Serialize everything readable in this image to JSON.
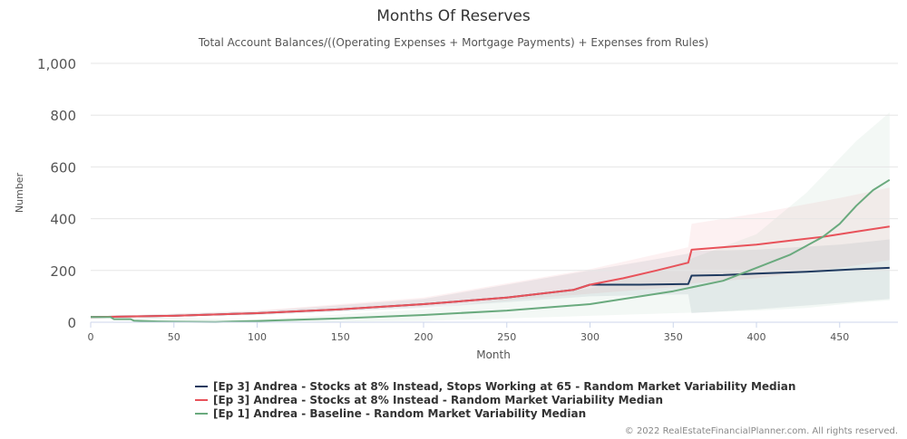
{
  "chart_data": {
    "type": "line",
    "title": "Months Of Reserves",
    "subtitle": "Total Account Balances/((Operating Expenses + Mortgage Payments) + Expenses from Rules)",
    "xlabel": "Month",
    "ylabel": "Number",
    "xlim": [
      0,
      485
    ],
    "ylim": [
      0,
      1000
    ],
    "x_ticks": [
      0,
      50,
      100,
      150,
      200,
      250,
      300,
      350,
      400,
      450
    ],
    "y_ticks": [
      0,
      200,
      400,
      600,
      800,
      1000
    ],
    "y_tick_labels": [
      "0",
      "200",
      "400",
      "600",
      "800",
      "1,000"
    ],
    "grid": true,
    "legend_position": "bottom",
    "series": [
      {
        "name": "[Ep 3] Andrea - Stocks at 8% Instead, Stops Working at 65 - Random Market Variability Median",
        "color": "#1f3a5f",
        "x": [
          0,
          50,
          100,
          150,
          200,
          250,
          290,
          300,
          330,
          359,
          361,
          380,
          400,
          430,
          460,
          480
        ],
        "y": [
          20,
          25,
          35,
          50,
          70,
          95,
          125,
          145,
          145,
          148,
          180,
          182,
          188,
          195,
          205,
          210
        ],
        "band": {
          "color": "#1f3a5f",
          "x": [
            0,
            100,
            200,
            300,
            359,
            361,
            400,
            450,
            480
          ],
          "lower": [
            18,
            28,
            55,
            100,
            108,
            35,
            50,
            75,
            90
          ],
          "upper": [
            22,
            42,
            90,
            200,
            265,
            275,
            280,
            300,
            320
          ]
        }
      },
      {
        "name": "[Ep 3] Andrea - Stocks at 8% Instead - Random Market Variability Median",
        "color": "#e8525a",
        "x": [
          0,
          50,
          100,
          150,
          200,
          250,
          290,
          300,
          320,
          340,
          359,
          361,
          380,
          400,
          420,
          440,
          460,
          480
        ],
        "y": [
          20,
          25,
          35,
          50,
          70,
          95,
          125,
          145,
          170,
          200,
          230,
          280,
          290,
          300,
          315,
          330,
          350,
          370
        ],
        "band": {
          "color": "#e8525a",
          "x": [
            0,
            100,
            200,
            300,
            359,
            361,
            400,
            450,
            480
          ],
          "lower": [
            18,
            30,
            60,
            110,
            140,
            150,
            170,
            210,
            240
          ],
          "upper": [
            22,
            45,
            95,
            205,
            290,
            380,
            420,
            480,
            520
          ]
        }
      },
      {
        "name": "[Ep 1] Andrea - Baseline - Random Market Variability Median",
        "color": "#6aaa7e",
        "x": [
          0,
          12,
          14,
          24,
          26,
          40,
          50,
          75,
          100,
          150,
          200,
          250,
          300,
          350,
          380,
          400,
          420,
          440,
          450,
          460,
          470,
          480
        ],
        "y": [
          20,
          20,
          12,
          12,
          6,
          3,
          2,
          1,
          5,
          15,
          28,
          45,
          70,
          120,
          160,
          210,
          260,
          330,
          380,
          450,
          510,
          550
        ],
        "band": {
          "color": "#6aaa7e",
          "x": [
            0,
            100,
            200,
            300,
            350,
            400,
            430,
            460,
            480
          ],
          "lower": [
            15,
            0,
            5,
            25,
            35,
            45,
            55,
            75,
            85
          ],
          "upper": [
            25,
            10,
            50,
            130,
            220,
            340,
            500,
            700,
            810
          ]
        }
      }
    ]
  },
  "credit": "© 2022 RealEstateFinancialPlanner.com. All rights reserved."
}
